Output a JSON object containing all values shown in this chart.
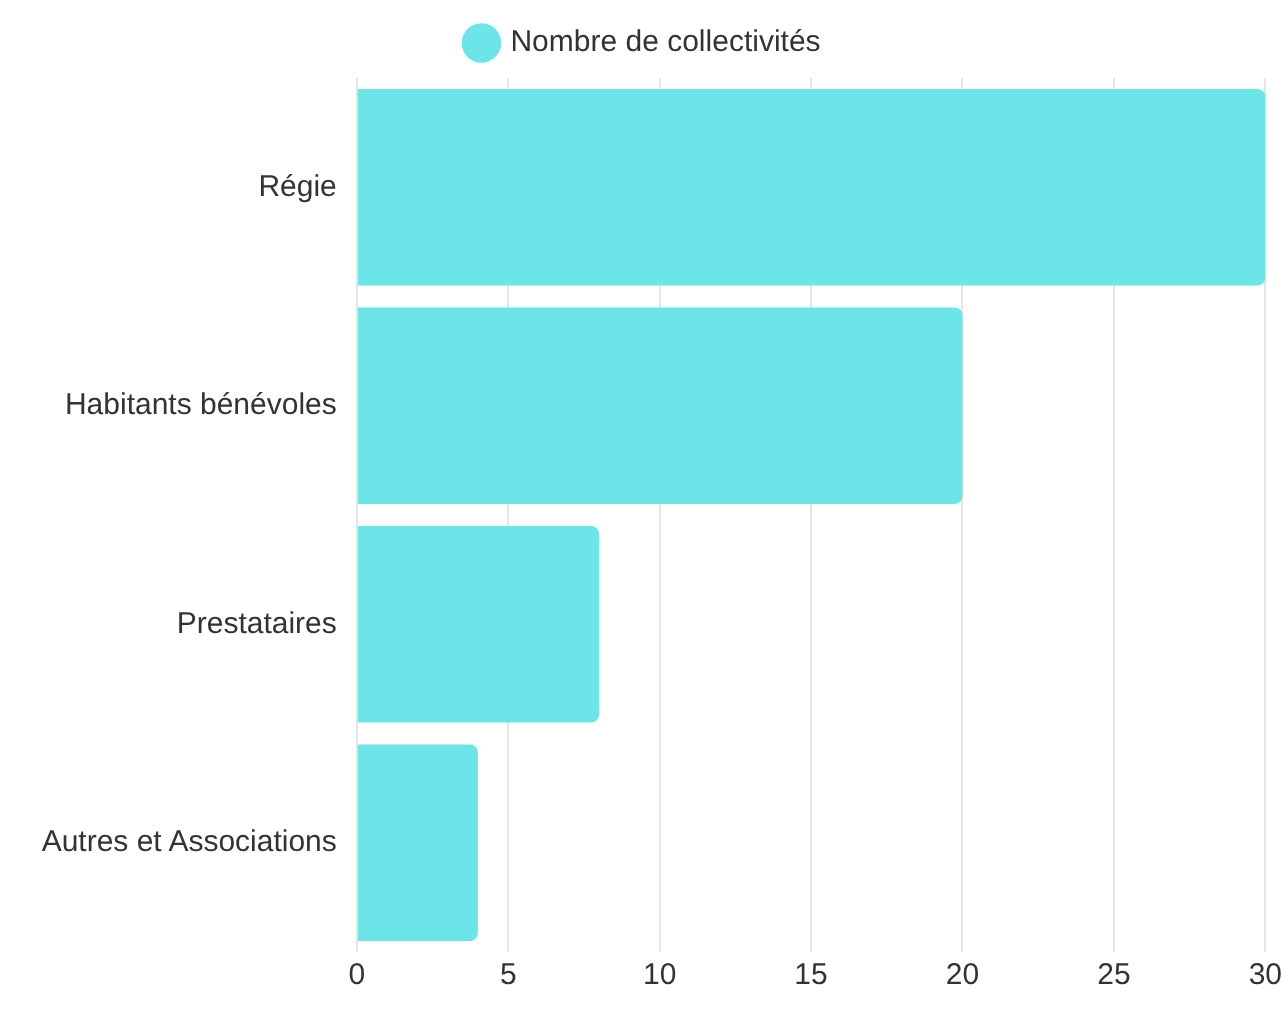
{
  "chart_data": {
    "type": "bar",
    "orientation": "horizontal",
    "categories": [
      "Régie",
      "Habitants bénévoles",
      "Prestataires",
      "Autres et Associations"
    ],
    "series": [
      {
        "name": "Nombre de collectivités",
        "color": "#6ce5e8",
        "values": [
          30,
          20,
          8,
          4
        ]
      }
    ],
    "xlim": [
      0,
      30
    ],
    "xticks": [
      0,
      5,
      10,
      15,
      20,
      25,
      30
    ],
    "grid": "x",
    "legend": "top"
  }
}
